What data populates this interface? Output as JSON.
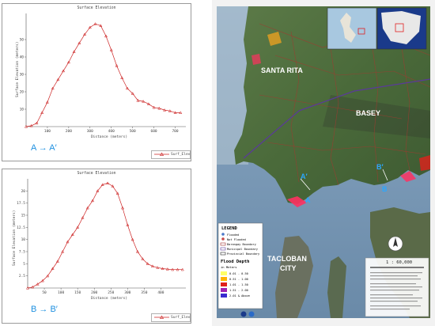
{
  "chart_data": [
    {
      "type": "line",
      "title": "Surface Elevation",
      "xlabel": "Distance (meters)",
      "ylabel": "Surface Elevation (meters)",
      "xlim": [
        0,
        750
      ],
      "ylim": [
        0,
        65
      ],
      "xticks": [
        100,
        200,
        300,
        400,
        500,
        600,
        700
      ],
      "yticks": [
        10,
        20,
        30,
        40,
        50
      ],
      "series": [
        {
          "name": "Surf_Elev",
          "color": "#cc2222",
          "x": [
            0,
            25,
            50,
            75,
            100,
            125,
            150,
            175,
            200,
            225,
            250,
            275,
            300,
            325,
            350,
            375,
            400,
            425,
            450,
            475,
            500,
            525,
            550,
            575,
            600,
            625,
            650,
            675,
            700,
            725
          ],
          "y": [
            0,
            0.5,
            2,
            8,
            14,
            22,
            27,
            32,
            37,
            43,
            48,
            53,
            57,
            59,
            58,
            52,
            44,
            35,
            28,
            22,
            19,
            15,
            14.5,
            13,
            11,
            10.5,
            9.5,
            9,
            8,
            8
          ]
        }
      ],
      "legend": "bottom-right",
      "caption": "A → A′"
    },
    {
      "type": "line",
      "title": "Surface Elevation",
      "xlabel": "Distance (meters)",
      "ylabel": "Surface Elevation (meters)",
      "xlim": [
        0,
        475
      ],
      "ylim": [
        0,
        22.5
      ],
      "xticks": [
        50,
        100,
        150,
        200,
        250,
        300,
        350,
        400
      ],
      "yticks": [
        2.5,
        5,
        7.5,
        10,
        12.5,
        15,
        17.5,
        20
      ],
      "series": [
        {
          "name": "Surf_Elev",
          "color": "#cc2222",
          "x": [
            0,
            15,
            30,
            45,
            60,
            75,
            90,
            105,
            120,
            135,
            150,
            165,
            180,
            195,
            210,
            225,
            240,
            255,
            270,
            285,
            300,
            315,
            330,
            345,
            360,
            375,
            390,
            405,
            420,
            435,
            450,
            465
          ],
          "y": [
            0,
            0.2,
            0.8,
            1.5,
            2.5,
            4,
            5.5,
            7.5,
            9.5,
            11,
            12.5,
            14.5,
            16.5,
            18,
            20,
            21.3,
            21.6,
            21,
            19.5,
            16.5,
            13,
            10,
            7.5,
            6,
            5,
            4.5,
            4.2,
            4,
            3.9,
            3.8,
            3.8,
            3.8
          ]
        }
      ],
      "legend": "bottom-right",
      "caption": "B → B′"
    }
  ],
  "map": {
    "place_labels": [
      "SANTA RITA",
      "BASEY",
      "TACLOBAN",
      "CITY"
    ],
    "profile_markers": [
      "A",
      "A′",
      "B",
      "B′"
    ],
    "legend": {
      "title": "LEGEND",
      "point_items": [
        {
          "label": "Flooded",
          "color": "#4a78c8"
        },
        {
          "label": "Not Flooded",
          "color": "#c84a4a"
        }
      ],
      "boundary_items": [
        {
          "label": "Barangay Boundary",
          "color": "#a03030"
        },
        {
          "label": "Municipal Boundary",
          "color": "#5a3a9a"
        },
        {
          "label": "Provincial Boundary",
          "color": "#2a2a2a"
        }
      ],
      "depth_title": "Flood Depth",
      "depth_units": "in Meters",
      "depth_classes": [
        {
          "label": "0.01 - 0.50",
          "color": "#ffff66"
        },
        {
          "label": "0.51 - 1.00",
          "color": "#ffb300"
        },
        {
          "label": "1.01 - 1.50",
          "color": "#e0201c"
        },
        {
          "label": "1.51 - 2.00",
          "color": "#a020b0"
        },
        {
          "label": "2.01 & Above",
          "color": "#3a2ad0"
        }
      ]
    },
    "scale": "1 : 60,000",
    "colors": {
      "sea": "#7a9bb8",
      "land": "#4c6a3c",
      "flood_zone": "#ff3060",
      "profile_marker": "#2aa8ff",
      "place_label": "#ffffff"
    }
  }
}
